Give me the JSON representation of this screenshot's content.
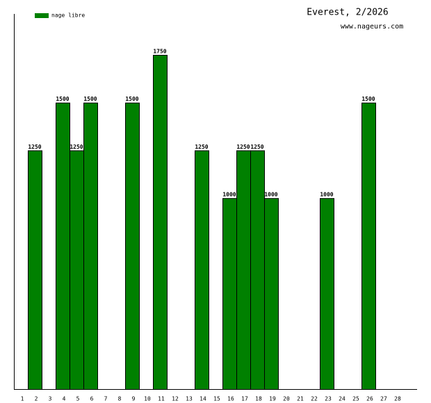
{
  "chart_data": {
    "type": "bar",
    "title": "Everest, 2/2026",
    "subtitle": "www.nageurs.com",
    "categories": [
      1,
      2,
      3,
      4,
      5,
      6,
      7,
      8,
      9,
      10,
      11,
      12,
      13,
      14,
      15,
      16,
      17,
      18,
      19,
      20,
      21,
      22,
      23,
      24,
      25,
      26,
      27,
      28
    ],
    "series": [
      {
        "name": "nage libre",
        "color": "#008000",
        "values": [
          null,
          1250,
          null,
          1500,
          1250,
          1500,
          null,
          null,
          1500,
          null,
          1750,
          null,
          null,
          1250,
          null,
          1000,
          1250,
          1250,
          1000,
          null,
          null,
          null,
          1000,
          null,
          null,
          1500,
          null,
          null
        ]
      }
    ],
    "ylim": [
      0,
      1750
    ],
    "legend": "top-left",
    "value_labels": true
  }
}
